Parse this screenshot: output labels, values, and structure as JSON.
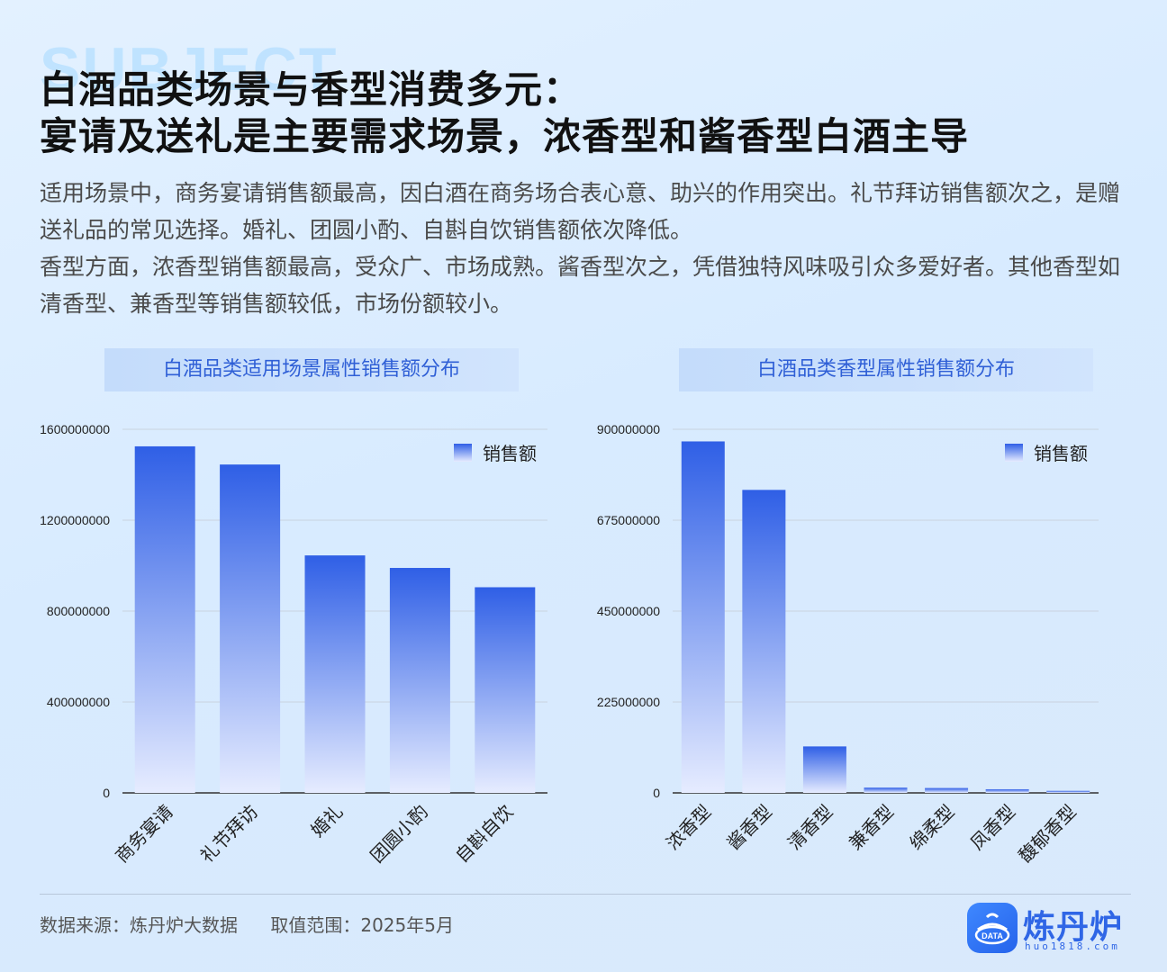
{
  "header": {
    "bg_word": "SUBJECT",
    "title_line1": "白酒品类场景与香型消费多元：",
    "title_line2": "宴请及送礼是主要需求场景，浓香型和酱香型白酒主导",
    "desc_p1": "适用场景中，商务宴请销售额最高，因白酒在商务场合表心意、助兴的作用突出。礼节拜访销售额次之，是赠送礼品的常见选择。婚礼、团圆小酌、自斟自饮销售额依次降低。",
    "desc_p2": "香型方面，浓香型销售额最高，受众广、市场成熟。酱香型次之，凭借独特风味吸引众多爱好者。其他香型如清香型、兼香型等销售额较低，市场份额较小。"
  },
  "colors": {
    "bar_top": "#2f5fe6",
    "bar_bottom": "#e6ecff",
    "title_text": "#2f5fd6",
    "grid": "#c9d3df",
    "axis": "#333333"
  },
  "chart_data": [
    {
      "type": "bar",
      "title": "白酒品类适用场景属性销售额分布",
      "categories": [
        "商务宴请",
        "礼节拜访",
        "婚礼",
        "团圆小酌",
        "自斟自饮"
      ],
      "series": [
        {
          "name": "销售额",
          "values": [
            1525000000,
            1445000000,
            1045000000,
            990000000,
            905000000
          ]
        }
      ],
      "yticks": [
        "0",
        "400000000",
        "800000000",
        "1200000000",
        "1600000000"
      ],
      "ylim": [
        0,
        1600000000
      ],
      "grid": true,
      "legend": "top-right"
    },
    {
      "type": "bar",
      "title": "白酒品类香型属性销售额分布",
      "categories": [
        "浓香型",
        "酱香型",
        "清香型",
        "兼香型",
        "绵柔型",
        "凤香型",
        "馥郁香型"
      ],
      "series": [
        {
          "name": "销售额",
          "values": [
            870000000,
            750000000,
            115000000,
            13000000,
            12000000,
            9000000,
            5000000
          ]
        }
      ],
      "yticks": [
        "0",
        "225000000",
        "450000000",
        "675000000",
        "900000000"
      ],
      "ylim": [
        0,
        900000000
      ],
      "grid": true,
      "legend": "top-right"
    }
  ],
  "footer": {
    "source": "数据来源：炼丹炉大数据",
    "range": "取值范围：2025年5月",
    "logo_name": "炼丹炉",
    "logo_badge": "DATA",
    "logo_url": "huo1818.com"
  }
}
